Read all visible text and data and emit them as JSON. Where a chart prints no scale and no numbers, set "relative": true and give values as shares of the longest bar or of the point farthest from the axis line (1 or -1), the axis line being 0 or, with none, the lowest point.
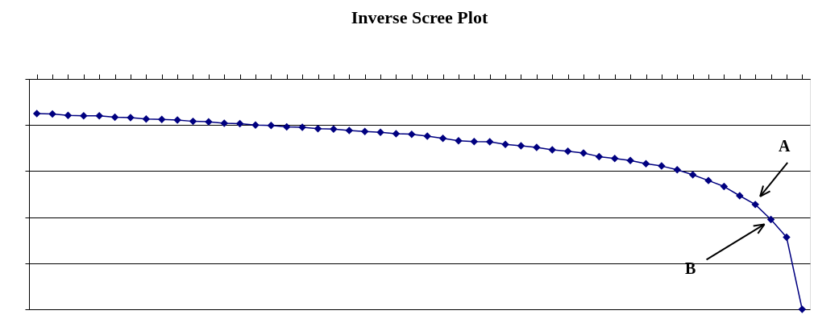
{
  "chart_data": {
    "type": "line",
    "title": "Inverse Scree Plot",
    "relative": true,
    "marker": "diamond",
    "line_style": "solid",
    "grid": "y",
    "categories": [
      null,
      null,
      null,
      null,
      null,
      null,
      null,
      null,
      null,
      null,
      null,
      null,
      null,
      null,
      null,
      null,
      null,
      null,
      null,
      null,
      null,
      null,
      null,
      null,
      null,
      null,
      null,
      null,
      null,
      null,
      null,
      null,
      null,
      null,
      null,
      null,
      null,
      null,
      null,
      null,
      null,
      null,
      null,
      null,
      null,
      null,
      null,
      null,
      null,
      null
    ],
    "series": [
      {
        "color": "#000080",
        "values": [
          -0.15,
          -0.152,
          -0.158,
          -0.16,
          -0.16,
          -0.166,
          -0.168,
          -0.174,
          -0.176,
          -0.178,
          -0.184,
          -0.186,
          -0.192,
          -0.194,
          -0.2,
          -0.202,
          -0.208,
          -0.21,
          -0.216,
          -0.218,
          -0.224,
          -0.228,
          -0.232,
          -0.238,
          -0.24,
          -0.248,
          -0.258,
          -0.268,
          -0.272,
          -0.273,
          -0.284,
          -0.29,
          -0.297,
          -0.308,
          -0.314,
          -0.322,
          -0.337,
          -0.345,
          -0.354,
          -0.368,
          -0.378,
          -0.394,
          -0.416,
          -0.441,
          -0.467,
          -0.507,
          -0.545,
          -0.61,
          -0.687,
          -1
        ]
      }
    ],
    "annotations": [
      "A",
      "B"
    ]
  }
}
